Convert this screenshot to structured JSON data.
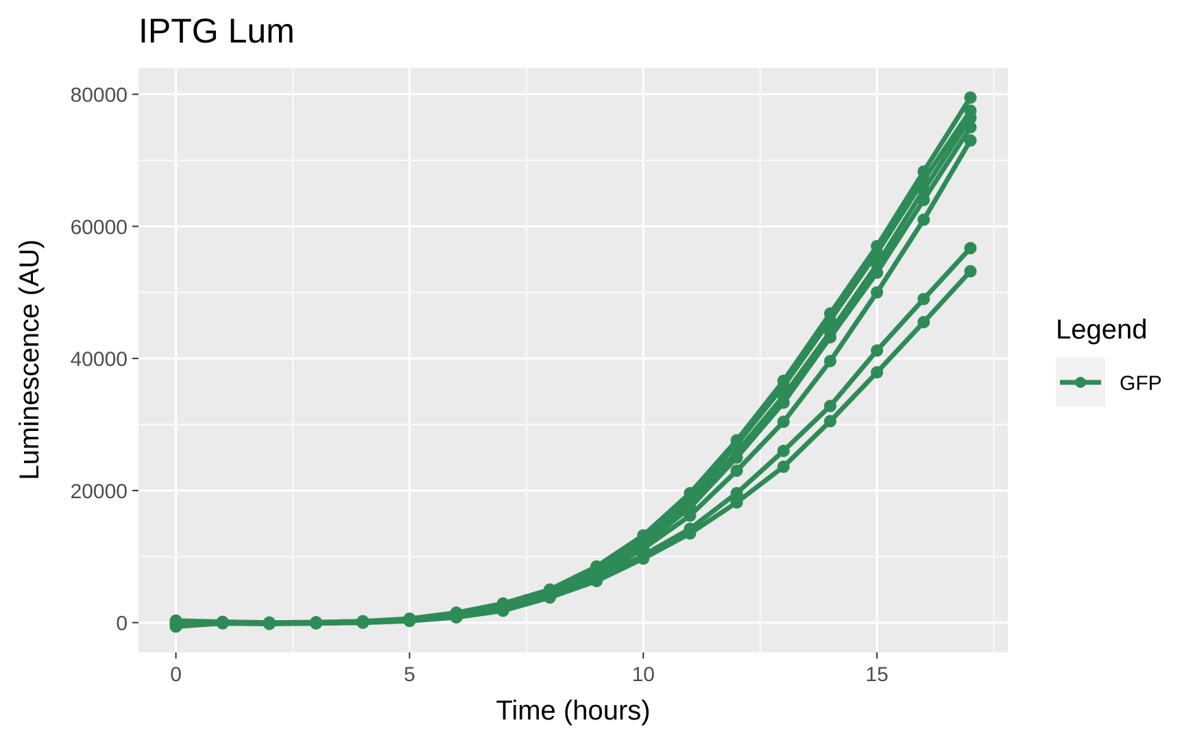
{
  "chart_data": {
    "type": "line",
    "title": "IPTG Lum",
    "xlabel": "Time (hours)",
    "ylabel": "Luminescence (AU)",
    "xlim": [
      -0.8,
      17.8
    ],
    "ylim": [
      -4500,
      84000
    ],
    "x_ticks": [
      0,
      5,
      10,
      15
    ],
    "x_tick_labels": [
      "0",
      "5",
      "10",
      "15"
    ],
    "y_ticks": [
      0,
      20000,
      40000,
      60000,
      80000
    ],
    "y_tick_labels": [
      "0",
      "20000",
      "40000",
      "60000",
      "80000"
    ],
    "x_minor_ticks": [
      2.5,
      7.5,
      12.5,
      17.5
    ],
    "y_minor_ticks": [
      10000,
      30000,
      50000,
      70000
    ],
    "grid": true,
    "background": "#ebebeb",
    "line_color": "#2e8b57",
    "legend": {
      "title": "Legend",
      "position": "right",
      "entries": [
        "GFP"
      ]
    },
    "x": [
      0,
      1,
      2,
      3,
      4,
      5,
      6,
      7,
      8,
      9,
      10,
      11,
      12,
      13,
      14,
      15,
      16,
      17
    ],
    "series": [
      {
        "values": [
          300,
          100,
          0,
          50,
          200,
          600,
          1500,
          2900,
          5000,
          8500,
          13200,
          19600,
          27600,
          36600,
          46800,
          57000,
          68300,
          79500
        ]
      },
      {
        "values": [
          200,
          100,
          0,
          50,
          200,
          500,
          1400,
          2700,
          4800,
          8200,
          12800,
          19000,
          27000,
          35800,
          45800,
          56000,
          67000,
          77500
        ]
      },
      {
        "values": [
          100,
          0,
          -100,
          0,
          100,
          400,
          1200,
          2500,
          4500,
          7800,
          12300,
          18200,
          25800,
          34300,
          44000,
          54200,
          65500,
          76400
        ]
      },
      {
        "values": [
          0,
          0,
          -100,
          -50,
          100,
          400,
          1100,
          2300,
          4300,
          7400,
          11800,
          17400,
          25000,
          33300,
          43200,
          53000,
          64000,
          75000
        ]
      },
      {
        "values": [
          -100,
          -50,
          -150,
          -100,
          0,
          300,
          1000,
          2100,
          4100,
          7000,
          11200,
          16200,
          23000,
          30400,
          39600,
          50000,
          61000,
          73000
        ]
      },
      {
        "values": [
          -500,
          -100,
          -150,
          -100,
          0,
          300,
          900,
          2000,
          4000,
          6600,
          10200,
          14200,
          19600,
          26000,
          32800,
          41200,
          49000,
          56700
        ]
      },
      {
        "values": [
          -600,
          -100,
          -200,
          -100,
          0,
          250,
          800,
          1800,
          3800,
          6300,
          9700,
          13500,
          18200,
          23600,
          30500,
          37900,
          45500,
          53200
        ]
      }
    ]
  }
}
